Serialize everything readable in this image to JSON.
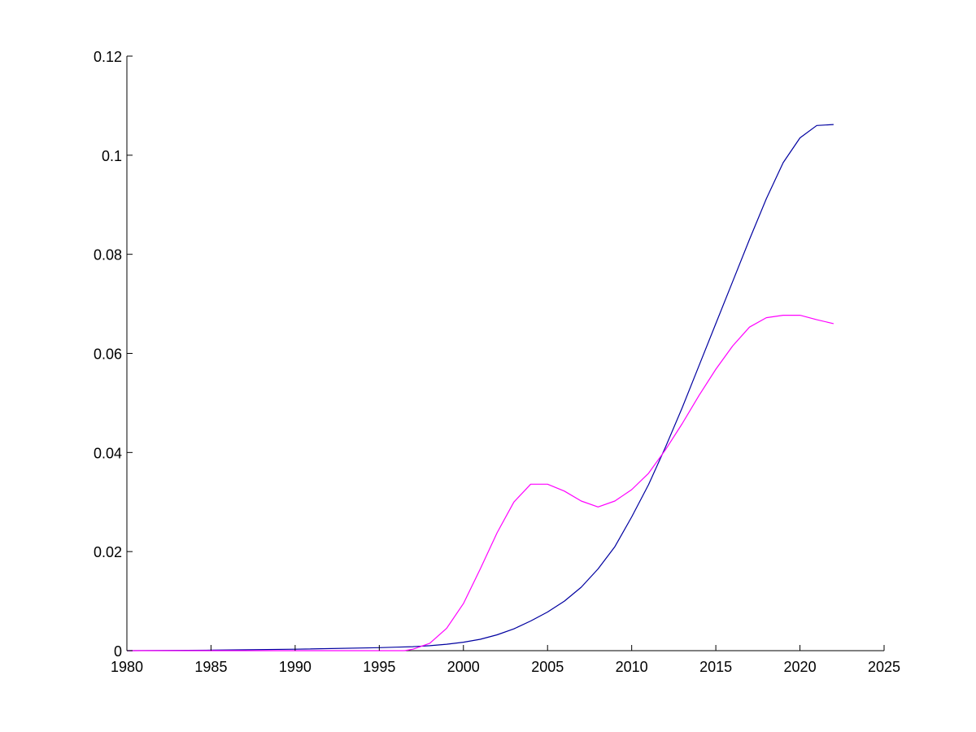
{
  "chart_data": {
    "type": "line",
    "title": "",
    "xlabel": "",
    "ylabel": "",
    "xlim": [
      1980,
      2025
    ],
    "ylim": [
      0,
      0.12
    ],
    "xticks": [
      1980,
      1985,
      1990,
      1995,
      2000,
      2005,
      2010,
      2015,
      2020,
      2025
    ],
    "xtick_labels": [
      "1980",
      "1985",
      "1990",
      "1995",
      "2000",
      "2005",
      "2010",
      "2015",
      "2020",
      "2025"
    ],
    "yticks": [
      0,
      0.02,
      0.04,
      0.06,
      0.08,
      0.1,
      0.12
    ],
    "ytick_labels": [
      "0",
      "0.02",
      "0.04",
      "0.06",
      "0.08",
      "0.1",
      "0.12"
    ],
    "grid": false,
    "legend": "none",
    "series": [
      {
        "color": "#0000a0",
        "points": [
          [
            1980,
            0.0
          ],
          [
            1985,
            0.0001
          ],
          [
            1990,
            0.0003
          ],
          [
            1995,
            0.0006
          ],
          [
            1996,
            0.0007
          ],
          [
            1997,
            0.0008
          ],
          [
            1998,
            0.001
          ],
          [
            1999,
            0.0013
          ],
          [
            2000,
            0.0017
          ],
          [
            2001,
            0.0023
          ],
          [
            2002,
            0.0032
          ],
          [
            2003,
            0.0044
          ],
          [
            2004,
            0.006
          ],
          [
            2005,
            0.0078
          ],
          [
            2006,
            0.01
          ],
          [
            2007,
            0.0128
          ],
          [
            2008,
            0.0165
          ],
          [
            2009,
            0.021
          ],
          [
            2010,
            0.027
          ],
          [
            2011,
            0.0335
          ],
          [
            2012,
            0.041
          ],
          [
            2013,
            0.049
          ],
          [
            2014,
            0.0575
          ],
          [
            2015,
            0.066
          ],
          [
            2016,
            0.0745
          ],
          [
            2017,
            0.083
          ],
          [
            2018,
            0.0912
          ],
          [
            2019,
            0.0985
          ],
          [
            2020,
            0.1035
          ],
          [
            2021,
            0.106
          ],
          [
            2022,
            0.1062
          ]
        ]
      },
      {
        "color": "#ff00ff",
        "points": [
          [
            1980,
            0.0
          ],
          [
            1996.5,
            0.0
          ],
          [
            1997,
            0.0003
          ],
          [
            1998,
            0.0015
          ],
          [
            1999,
            0.0045
          ],
          [
            2000,
            0.0095
          ],
          [
            2001,
            0.0165
          ],
          [
            2002,
            0.0238
          ],
          [
            2003,
            0.03
          ],
          [
            2004,
            0.0336
          ],
          [
            2005,
            0.0336
          ],
          [
            2006,
            0.0322
          ],
          [
            2007,
            0.0302
          ],
          [
            2008,
            0.029
          ],
          [
            2009,
            0.0302
          ],
          [
            2010,
            0.0325
          ],
          [
            2011,
            0.0358
          ],
          [
            2012,
            0.0405
          ],
          [
            2013,
            0.0458
          ],
          [
            2014,
            0.0515
          ],
          [
            2015,
            0.0568
          ],
          [
            2016,
            0.0615
          ],
          [
            2017,
            0.0653
          ],
          [
            2018,
            0.0672
          ],
          [
            2019,
            0.0677
          ],
          [
            2020,
            0.0677
          ],
          [
            2021,
            0.0668
          ],
          [
            2022,
            0.066
          ]
        ]
      }
    ]
  }
}
